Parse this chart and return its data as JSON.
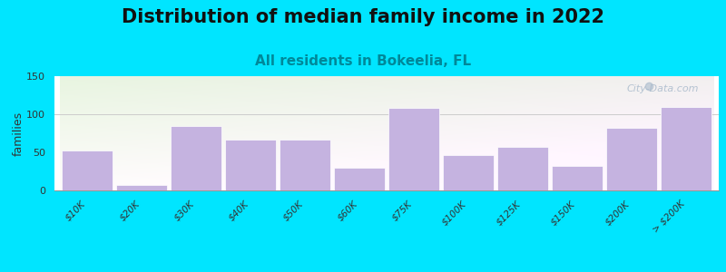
{
  "title": "Distribution of median family income in 2022",
  "subtitle": "All residents in Bokeelia, FL",
  "ylabel": "families",
  "categories": [
    "$10K",
    "$20K",
    "$30K",
    "$40K",
    "$50K",
    "$60K",
    "$75K",
    "$100K",
    "$125K",
    "$150K",
    "$200K",
    "> $200K"
  ],
  "values": [
    52,
    7,
    85,
    67,
    67,
    30,
    108,
    46,
    57,
    32,
    82,
    109
  ],
  "bar_color": "#c5b3e0",
  "bar_edge_color": "#ffffff",
  "background_color": "#00e5ff",
  "title_fontsize": 15,
  "subtitle_fontsize": 11,
  "subtitle_color": "#008899",
  "ylabel_fontsize": 9,
  "ylim": [
    0,
    150
  ],
  "yticks": [
    0,
    50,
    100,
    150
  ],
  "watermark": "City-Data.com",
  "watermark_color": "#aabbcc"
}
